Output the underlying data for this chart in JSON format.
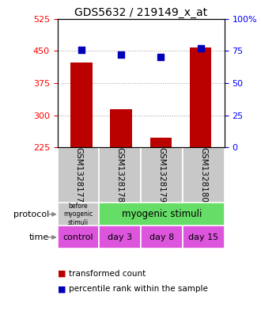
{
  "title": "GDS5632 / 219149_x_at",
  "samples": [
    "GSM1328177",
    "GSM1328178",
    "GSM1328179",
    "GSM1328180"
  ],
  "bar_values": [
    422,
    315,
    248,
    458
  ],
  "bar_bottom": 225,
  "blue_dot_pct": [
    76,
    72,
    70,
    77
  ],
  "left_ylim": [
    225,
    525
  ],
  "right_ylim": [
    0,
    100
  ],
  "left_ticks": [
    225,
    300,
    375,
    450,
    525
  ],
  "right_ticks": [
    0,
    25,
    50,
    75,
    100
  ],
  "right_tick_labels": [
    "0",
    "25",
    "50",
    "75",
    "100%"
  ],
  "bar_color": "#bb0000",
  "dot_color": "#0000bb",
  "protocol_label_0": "before\nmyogenic\nstimuli",
  "protocol_label_1": "myogenic stimuli",
  "protocol_color_0": "#c8c8c8",
  "protocol_color_1": "#66dd66",
  "time_labels": [
    "control",
    "day 3",
    "day 8",
    "day 15"
  ],
  "time_color": "#dd55dd",
  "sample_bg_color": "#c8c8c8",
  "legend_bar_label": "transformed count",
  "legend_dot_label": "percentile rank within the sample",
  "title_fontsize": 10,
  "tick_fontsize": 8,
  "cell_fontsize": 7.5,
  "legend_fontsize": 7.5
}
